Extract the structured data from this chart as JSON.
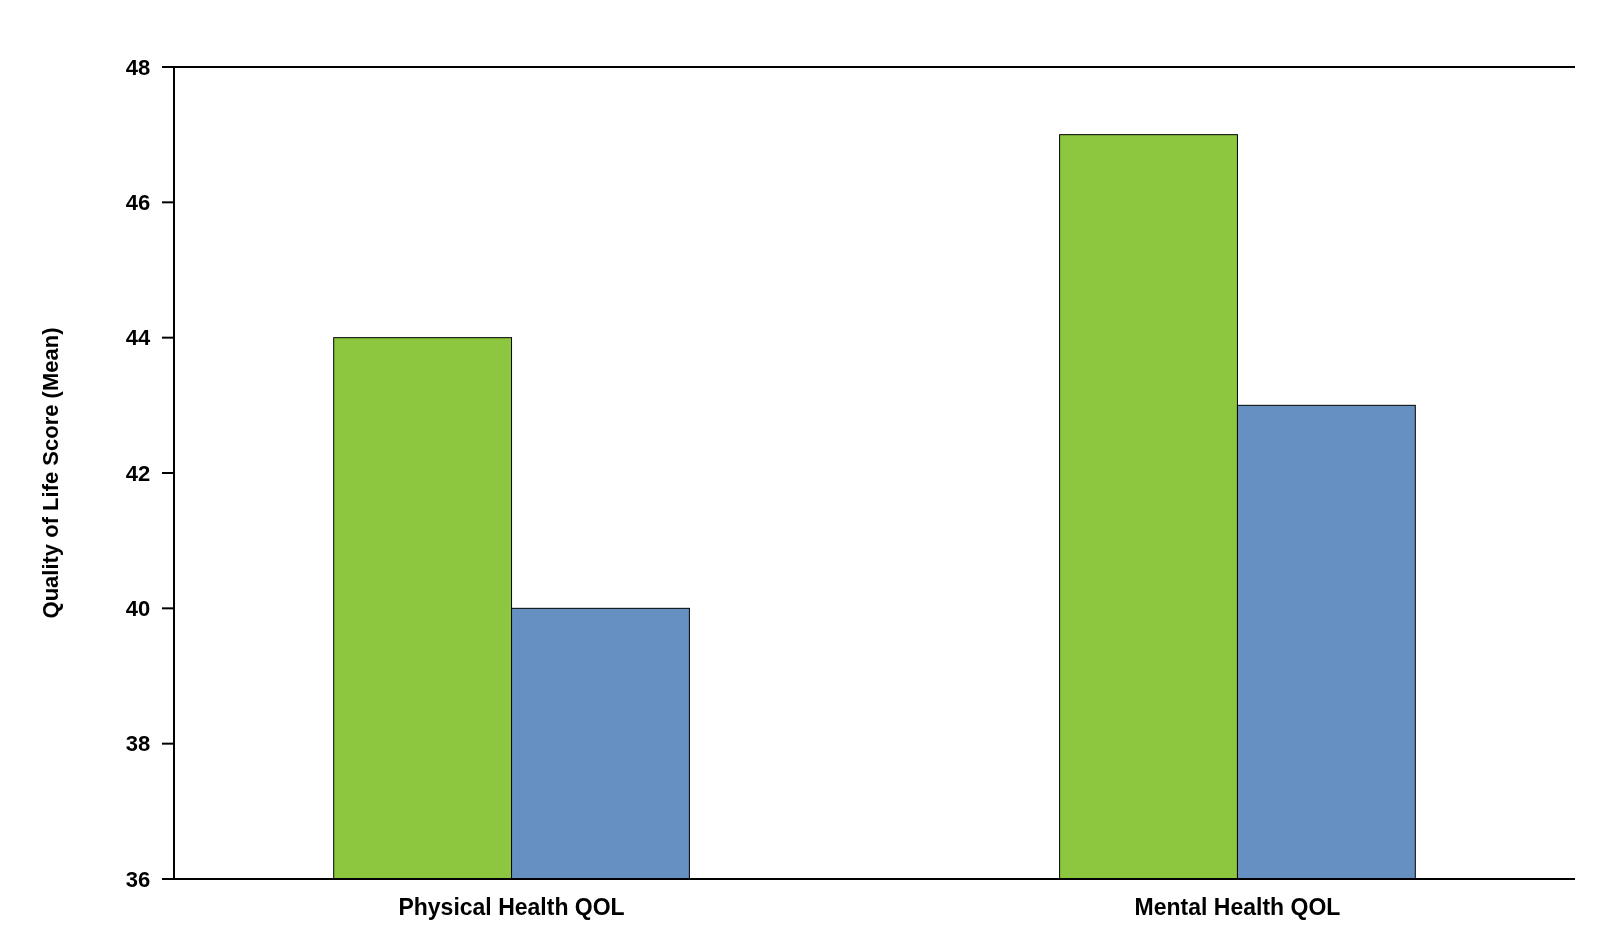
{
  "chart_data": {
    "type": "bar",
    "ylabel": "Quality of Life Score (Mean)",
    "categories": [
      "Physical Health QOL",
      "Mental Health QOL"
    ],
    "series": [
      {
        "color": "#8dc63f",
        "values": [
          44,
          47
        ]
      },
      {
        "color": "#6790c2",
        "values": [
          40,
          43
        ]
      }
    ],
    "ylim": [
      36,
      48
    ],
    "yticks": [
      36,
      38,
      40,
      42,
      44,
      46,
      48
    ],
    "grid": false
  }
}
